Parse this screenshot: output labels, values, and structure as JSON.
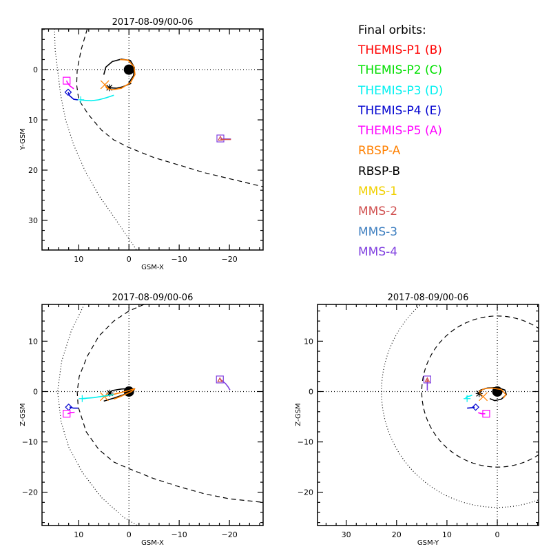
{
  "legend": {
    "title": "Final orbits:",
    "items": [
      {
        "label": "THEMIS-P1 (B)",
        "color": "#ff0000"
      },
      {
        "label": "THEMIS-P2 (C)",
        "color": "#00e000"
      },
      {
        "label": "THEMIS-P3 (D)",
        "color": "#00f0f0"
      },
      {
        "label": "THEMIS-P4 (E)",
        "color": "#0000d0"
      },
      {
        "label": "THEMIS-P5 (A)",
        "color": "#ff00ff"
      },
      {
        "label": "RBSP-A",
        "color": "#ff8000"
      },
      {
        "label": "RBSP-B",
        "color": "#000000"
      },
      {
        "label": "MMS-1",
        "color": "#f0d000"
      },
      {
        "label": "MMS-2",
        "color": "#d05050"
      },
      {
        "label": "MMS-3",
        "color": "#4080c0"
      },
      {
        "label": "MMS-4",
        "color": "#8040e0"
      }
    ]
  },
  "chart_data": [
    {
      "type": "line",
      "id": "xy",
      "title": "2017-08-09/00-06",
      "xlabel": "GSM-X",
      "ylabel": "Y-GSM",
      "xlim": [
        17.3,
        -26.7
      ],
      "ylim": [
        -8.1,
        35.9
      ],
      "y_inverted": true,
      "xticks": [
        10,
        0,
        -10,
        -20
      ],
      "yticks": [
        0,
        10,
        20,
        30
      ],
      "grid": "dotted lines through origin",
      "boundaries": {
        "bow_shock": [
          [
            14.8,
            -8.1
          ],
          [
            14.7,
            -4
          ],
          [
            14.2,
            0
          ],
          [
            13.6,
            5
          ],
          [
            12.6,
            10
          ],
          [
            11,
            15
          ],
          [
            8.8,
            20
          ],
          [
            6,
            25
          ],
          [
            2.5,
            30
          ],
          [
            -1.5,
            35.9
          ],
          [
            -2,
            36
          ]
        ],
        "magnetopause": [
          [
            8.3,
            -8.1
          ],
          [
            9.5,
            -4
          ],
          [
            10.3,
            0
          ],
          [
            10.4,
            3
          ],
          [
            10,
            6
          ],
          [
            8,
            9
          ],
          [
            5.5,
            12
          ],
          [
            3,
            14
          ],
          [
            0,
            15.5
          ],
          [
            -5,
            17.5
          ],
          [
            -10,
            19
          ],
          [
            -15,
            20.5
          ],
          [
            -20,
            21.7
          ],
          [
            -26.7,
            23.3
          ]
        ]
      },
      "orbits": [
        {
          "name": "RBSP-B",
          "color": "#000000",
          "points": [
            [
              5,
              1
            ],
            [
              4.6,
              -0.5
            ],
            [
              3.3,
              -1.6
            ],
            [
              1.5,
              -2.1
            ],
            [
              -0.3,
              -1.8
            ],
            [
              -1.1,
              -0.4
            ],
            [
              -0.9,
              1.2
            ],
            [
              0,
              2.6
            ],
            [
              -0.3,
              2.8
            ],
            [
              1.2,
              3.4
            ],
            [
              2.5,
              3.7
            ],
            [
              3.9,
              3.6
            ]
          ],
          "marker": "asterisk",
          "at": [
            3.9,
            3.6
          ]
        },
        {
          "name": "RBSP-A",
          "color": "#ff8000",
          "points": [
            [
              1.8,
              -2.0
            ],
            [
              0.2,
              -1.9
            ],
            [
              -1.0,
              -0.6
            ],
            [
              -1.2,
              1.0
            ],
            [
              -0.3,
              2.6
            ],
            [
              1.5,
              3.7
            ],
            [
              3.2,
              4.0
            ],
            [
              4.3,
              3.8
            ],
            [
              4.8,
              3.0
            ]
          ],
          "marker": "x",
          "at": [
            4.8,
            3.0
          ]
        },
        {
          "name": "THEMIS-P3 (D)",
          "color": "#00f0f0",
          "points": [
            [
              3,
              5.1
            ],
            [
              4.5,
              5.6
            ],
            [
              6,
              6.0
            ],
            [
              7.5,
              6.2
            ],
            [
              9,
              6.1
            ],
            [
              9.6,
              6.0
            ]
          ],
          "marker": "plus",
          "at": [
            9.6,
            6.0
          ]
        },
        {
          "name": "THEMIS-P4 (E)",
          "color": "#0000d0",
          "points": [
            [
              10.2,
              6.0
            ],
            [
              11,
              5.9
            ],
            [
              11.8,
              5.2
            ],
            [
              12.1,
              4.5
            ]
          ],
          "marker": "diamond",
          "at": [
            12.1,
            4.5
          ]
        },
        {
          "name": "THEMIS-P5 (A)",
          "color": "#ff00ff",
          "points": [
            [
              11.0,
              3.8
            ],
            [
              11.8,
              3.2
            ],
            [
              12.3,
              2.5
            ],
            [
              12.4,
              2.2
            ]
          ],
          "marker": "square",
          "at": [
            12.4,
            2.2
          ]
        },
        {
          "name": "MMS-4",
          "color": "#8040e0",
          "points": [
            [
              -20.3,
              13.8
            ],
            [
              -18.2,
              13.8
            ]
          ],
          "marker": "square",
          "at": [
            -18.2,
            13.7
          ]
        },
        {
          "name": "MMS-2",
          "color": "#d05050",
          "points": [
            [
              -20.3,
              13.9
            ],
            [
              -18.2,
              13.9
            ]
          ],
          "marker": "triangle",
          "at": [
            -18.2,
            13.7
          ]
        }
      ]
    },
    {
      "type": "line",
      "id": "xz",
      "title": "2017-08-09/00-06",
      "xlabel": "GSM-X",
      "ylabel": "Z-GSM",
      "xlim": [
        17.3,
        -26.7
      ],
      "ylim": [
        -26.6,
        17.3
      ],
      "y_inverted": false,
      "xticks": [
        10,
        0,
        -10,
        -20
      ],
      "yticks": [
        10,
        0,
        -10,
        -20
      ],
      "grid": "dotted lines through origin",
      "boundaries": {
        "bow_shock": [
          [
            8.9,
            17.3
          ],
          [
            11.5,
            12
          ],
          [
            13.4,
            6
          ],
          [
            14.2,
            0
          ],
          [
            13.5,
            -6
          ],
          [
            12,
            -11
          ],
          [
            9.3,
            -16
          ],
          [
            5.5,
            -21
          ],
          [
            1,
            -25
          ],
          [
            -4,
            -28
          ]
        ],
        "magnetopause": [
          [
            -3,
            17.3
          ],
          [
            0,
            16
          ],
          [
            3,
            14
          ],
          [
            6,
            11
          ],
          [
            8.3,
            7
          ],
          [
            9.9,
            3
          ],
          [
            10.3,
            0
          ],
          [
            10.1,
            -3
          ],
          [
            8.5,
            -8
          ],
          [
            6,
            -11.5
          ],
          [
            3,
            -14
          ],
          [
            0,
            -15.3
          ],
          [
            -5,
            -17.3
          ],
          [
            -10,
            -18.9
          ],
          [
            -15,
            -20.3
          ],
          [
            -20,
            -21.3
          ],
          [
            -26.7,
            -22
          ]
        ]
      },
      "orbits": [
        {
          "name": "RBSP-B",
          "color": "#000000",
          "points": [
            [
              5,
              -1.9
            ],
            [
              3,
              -1.3
            ],
            [
              1,
              -0.6
            ],
            [
              -0.9,
              0.1
            ],
            [
              -1.1,
              0.5
            ],
            [
              -0.3,
              0.6
            ],
            [
              1.5,
              0.5
            ],
            [
              3.3,
              0.2
            ],
            [
              4,
              -0.3
            ]
          ],
          "marker": "asterisk",
          "at": [
            3.8,
            -0.3
          ]
        },
        {
          "name": "RBSP-A",
          "color": "#ff8000",
          "points": [
            [
              3,
              -1.5
            ],
            [
              1.5,
              -0.9
            ],
            [
              -0.5,
              0
            ],
            [
              -1.2,
              0.6
            ],
            [
              0,
              0.2
            ],
            [
              2,
              -0.3
            ],
            [
              4.5,
              -0.9
            ],
            [
              4.9,
              -1
            ]
          ],
          "marker": "x",
          "at": [
            4.9,
            -1.0
          ]
        },
        {
          "name": "THEMIS-P3 (D)",
          "color": "#00f0f0",
          "points": [
            [
              3,
              -0.6
            ],
            [
              5,
              -0.9
            ],
            [
              7,
              -1.2
            ],
            [
              9.3,
              -1.4
            ]
          ],
          "marker": "plus",
          "at": [
            9.3,
            -1.4
          ]
        },
        {
          "name": "THEMIS-P4 (E)",
          "color": "#0000d0",
          "points": [
            [
              10.1,
              -3.3
            ],
            [
              11,
              -3.3
            ],
            [
              11.8,
              -3.1
            ]
          ],
          "marker": "diamond",
          "at": [
            12.0,
            -3.1
          ]
        },
        {
          "name": "THEMIS-P5 (A)",
          "color": "#ff00ff",
          "points": [
            [
              10.8,
              -4.1
            ],
            [
              11.6,
              -4.2
            ],
            [
              12.2,
              -4.4
            ]
          ],
          "marker": "square",
          "at": [
            12.4,
            -4.4
          ]
        },
        {
          "name": "MMS-4",
          "color": "#8040e0",
          "points": [
            [
              -20.1,
              0.3
            ],
            [
              -19.7,
              1.0
            ],
            [
              -19.2,
              1.6
            ],
            [
              -18.6,
              2.1
            ],
            [
              -18.1,
              2.4
            ]
          ],
          "marker": "square",
          "at": [
            -18.1,
            2.4
          ]
        },
        {
          "name": "MMS-2",
          "color": "#d05050",
          "points": [
            [
              -18.6,
              2.1
            ],
            [
              -18.1,
              2.4
            ]
          ],
          "marker": "triangle",
          "at": [
            -18.1,
            2.3
          ]
        }
      ]
    },
    {
      "type": "line",
      "id": "yz",
      "title": "2017-08-09/00-06",
      "xlabel": "GSM-Y",
      "ylabel": "Z-GSM",
      "xlim": [
        35.7,
        -8.2
      ],
      "ylim": [
        -26.6,
        17.3
      ],
      "y_inverted": false,
      "xticks": [
        30,
        20,
        10,
        0
      ],
      "yticks": [
        10,
        0,
        -10,
        -20
      ],
      "grid": "dotted lines through origin",
      "boundaries": {
        "bow_shock_circle": {
          "center": [
            0,
            0
          ],
          "radius": 23,
          "style": "dotted"
        },
        "magnetopause_circle": {
          "center": [
            0,
            0
          ],
          "radius": 15,
          "style": "dashed"
        }
      },
      "orbits": [
        {
          "name": "RBSP-B",
          "color": "#000000",
          "points": [
            [
              3.8,
              -0.4
            ],
            [
              3.3,
              0.3
            ],
            [
              2,
              0.7
            ],
            [
              0,
              0.8
            ],
            [
              -1.5,
              0.3
            ],
            [
              -1.8,
              -0.6
            ],
            [
              -0.8,
              -1.5
            ],
            [
              0.5,
              -1.8
            ],
            [
              1.5,
              -1.4
            ]
          ],
          "marker": "asterisk",
          "at": [
            3.6,
            -0.4
          ]
        },
        {
          "name": "RBSP-A",
          "color": "#ff8000",
          "points": [
            [
              3.6,
              0
            ],
            [
              2.5,
              0.6
            ],
            [
              1,
              0.7
            ],
            [
              -0.8,
              0.4
            ],
            [
              -1.7,
              -0.6
            ],
            [
              -1.2,
              -1.3
            ]
          ],
          "marker": "x",
          "at": [
            2.8,
            -1.0
          ]
        },
        {
          "name": "THEMIS-P3 (D)",
          "color": "#00f0f0",
          "points": [
            [
              5.0,
              -0.7
            ],
            [
              5.5,
              -0.9
            ],
            [
              6.0,
              -1.0
            ],
            [
              6.3,
              -1.3
            ]
          ],
          "marker": "plus",
          "at": [
            6.0,
            -1.4
          ]
        },
        {
          "name": "THEMIS-P4 (E)",
          "color": "#0000d0",
          "points": [
            [
              6.0,
              -3.3
            ],
            [
              5.0,
              -3.2
            ],
            [
              4.5,
              -3.1
            ]
          ],
          "marker": "diamond",
          "at": [
            4.3,
            -3.1
          ]
        },
        {
          "name": "THEMIS-P5 (A)",
          "color": "#ff00ff",
          "points": [
            [
              3.8,
              -4.2
            ],
            [
              3.1,
              -4.4
            ],
            [
              2.4,
              -4.4
            ]
          ],
          "marker": "square",
          "at": [
            2.2,
            -4.4
          ]
        },
        {
          "name": "MMS-4",
          "color": "#8040e0",
          "points": [
            [
              13.9,
              0.2
            ],
            [
              13.9,
              2.4
            ]
          ],
          "marker": "square",
          "at": [
            13.9,
            2.4
          ]
        },
        {
          "name": "MMS-2",
          "color": "#d05050",
          "points": [
            [
              13.9,
              2.0
            ],
            [
              13.9,
              2.4
            ]
          ],
          "marker": "triangle",
          "at": [
            13.9,
            2.3
          ]
        }
      ]
    }
  ]
}
